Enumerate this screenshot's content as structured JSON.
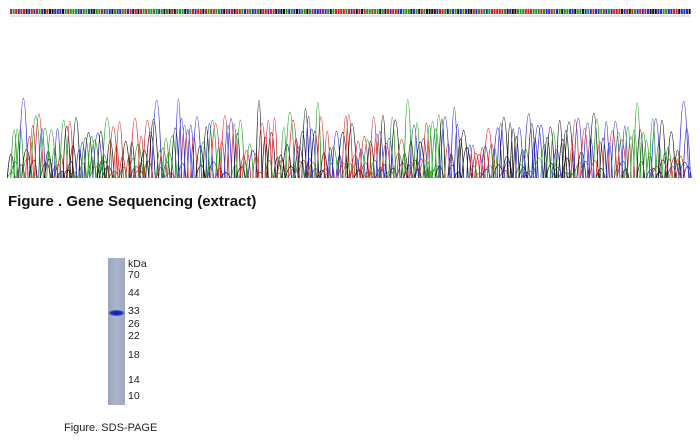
{
  "figures": [
    {
      "caption": "Figure . Gene Sequencing (extract)"
    },
    {
      "caption": "Figure. SDS-PAGE",
      "marker_unit": "kDa",
      "markers": [
        "70",
        "44",
        "33",
        "26",
        "22",
        "18",
        "14",
        "10"
      ]
    }
  ]
}
